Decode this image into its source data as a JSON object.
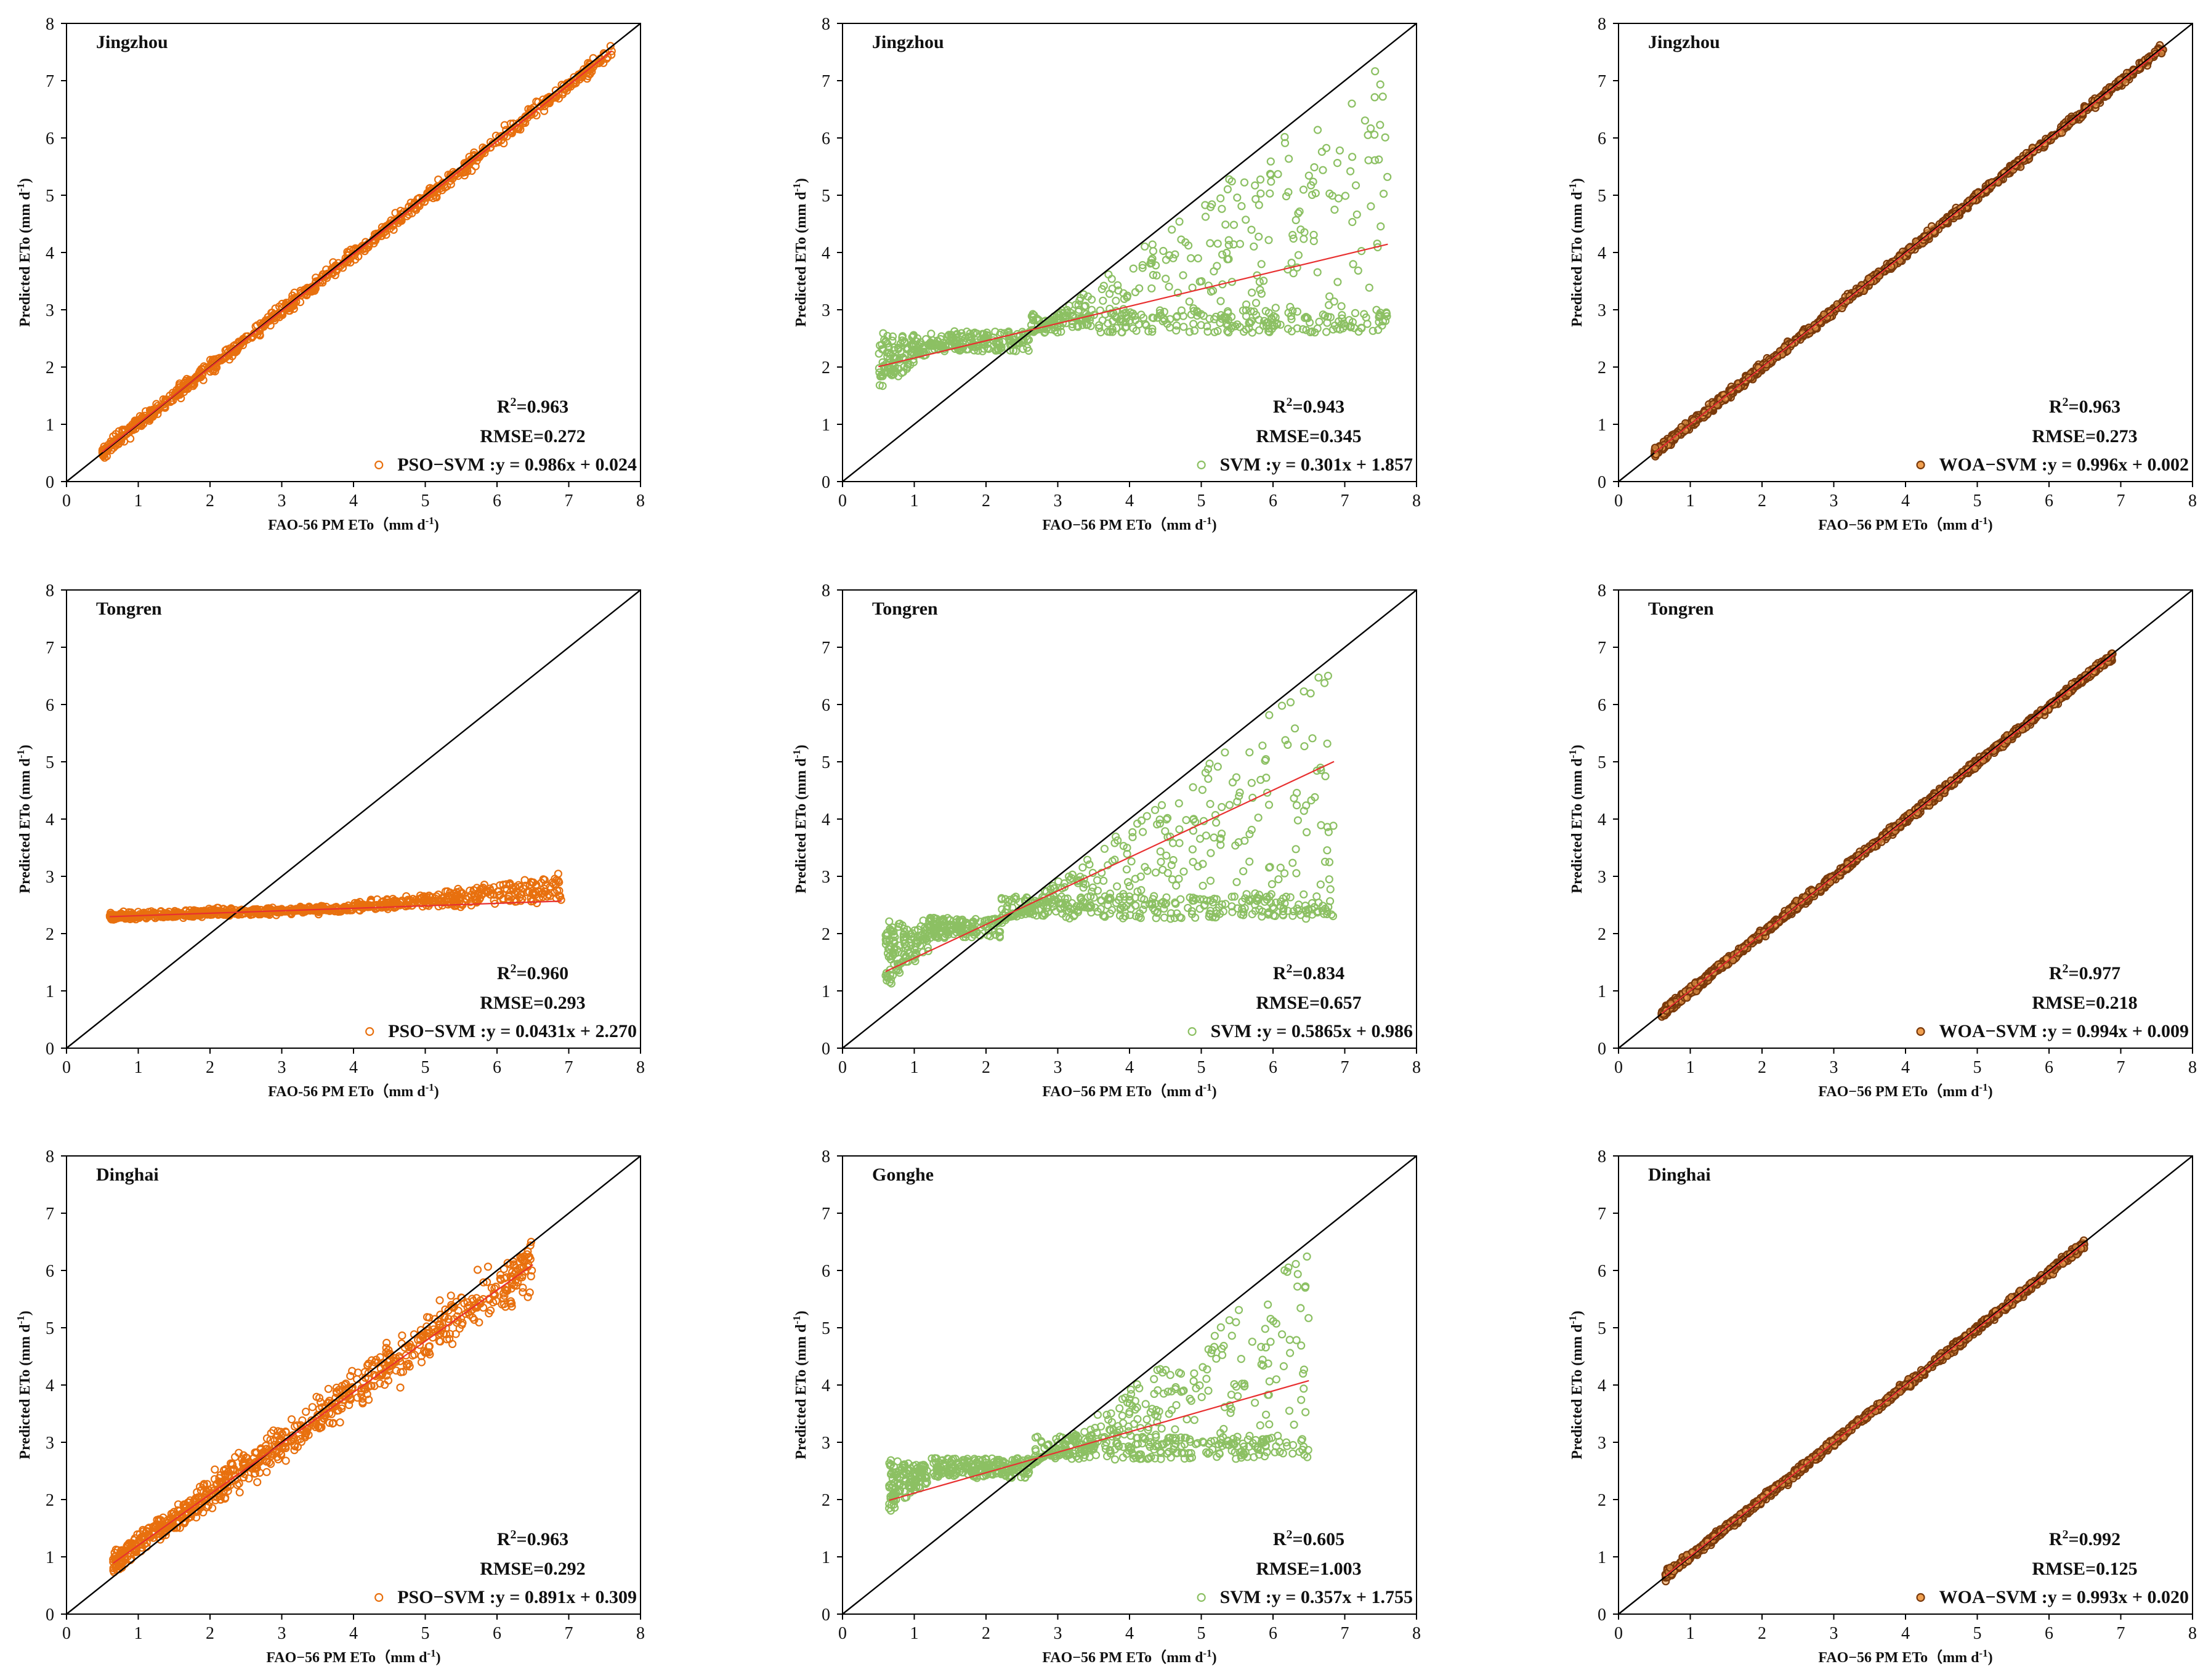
{
  "figure": {
    "xlabel": "FAO−56 PM ETo",
    "xlabel_alt": "FAO-56 PM ETo",
    "unit": "（mm d",
    "ylabel": "Predicted ETo",
    "ylabel_unit": "(mm d",
    "unit_sup": "-1",
    "unit_close": ")",
    "colors": {
      "PSO-SVM": "#e8700e",
      "SVM": "#8cc063",
      "WOA-SVM": "#7a3a0c",
      "fit": "#e83030",
      "diag": "#000000"
    }
  },
  "chart_data": [
    {
      "type": "scatter",
      "model": "PSO-SVM",
      "station": "Jingzhou",
      "xlim": [
        0,
        8
      ],
      "ylim": [
        0,
        8
      ],
      "xticks": [
        "0",
        "1",
        "2",
        "3",
        "4",
        "5",
        "6",
        "7",
        "8"
      ],
      "yticks": [
        "0",
        "1",
        "2",
        "3",
        "4",
        "5",
        "6",
        "7",
        "8"
      ],
      "xlabel_style": "alt",
      "r2_label": "R",
      "r2_sup": "2",
      "r2_value": "=0.963",
      "rmse": "RMSE=0.272",
      "legend": "PSO−SVM :y = 0.986x + 0.024",
      "slope": 0.986,
      "intercept": 0.024,
      "x_range": [
        0.5,
        7.6
      ],
      "points_hint": "close to 1:1 line with moderate scatter"
    },
    {
      "type": "scatter",
      "model": "SVM",
      "station": "Jingzhou",
      "xlim": [
        0,
        8
      ],
      "ylim": [
        0,
        8
      ],
      "xticks": [
        "0",
        "1",
        "2",
        "3",
        "4",
        "5",
        "6",
        "7",
        "8"
      ],
      "yticks": [
        "0",
        "1",
        "2",
        "3",
        "4",
        "5",
        "6",
        "7",
        "8"
      ],
      "xlabel_style": "normal",
      "r2_label": "R",
      "r2_sup": "2",
      "r2_value": "=0.943",
      "rmse": "RMSE=0.345",
      "legend": "SVM :y = 0.301x + 1.857",
      "slope": 0.301,
      "intercept": 1.857,
      "x_range": [
        0.5,
        7.6
      ],
      "points_hint": "flat band near 2.5 with spread at high x"
    },
    {
      "type": "scatter",
      "model": "WOA-SVM",
      "station": "Jingzhou",
      "xlim": [
        0,
        8
      ],
      "ylim": [
        0,
        8
      ],
      "xticks": [
        "0",
        "1",
        "2",
        "3",
        "4",
        "5",
        "6",
        "7",
        "8"
      ],
      "yticks": [
        "0",
        "1",
        "2",
        "3",
        "4",
        "5",
        "6",
        "7",
        "8"
      ],
      "xlabel_style": "normal",
      "r2_label": "R",
      "r2_sup": "2",
      "r2_value": "=0.963",
      "rmse": "RMSE=0.273",
      "legend": "WOA−SVM :y = 0.996x + 0.002",
      "slope": 0.996,
      "intercept": 0.002,
      "x_range": [
        0.5,
        7.6
      ],
      "points_hint": "tight along 1:1 line"
    },
    {
      "type": "scatter",
      "model": "PSO-SVM",
      "station": "Tongren",
      "xlim": [
        0,
        8
      ],
      "ylim": [
        0,
        8
      ],
      "xticks": [
        "0",
        "1",
        "2",
        "3",
        "4",
        "5",
        "6",
        "7",
        "8"
      ],
      "yticks": [
        "0",
        "1",
        "2",
        "3",
        "4",
        "5",
        "6",
        "7",
        "8"
      ],
      "xlabel_style": "alt",
      "r2_label": "R",
      "r2_sup": "2",
      "r2_value": "=0.960",
      "rmse": "RMSE=0.293",
      "legend": "PSO−SVM :y = 0.0431x + 2.270",
      "slope": 0.0431,
      "intercept": 2.27,
      "x_range": [
        0.6,
        6.9
      ],
      "points_hint": "flat band near 2.35"
    },
    {
      "type": "scatter",
      "model": "SVM",
      "station": "Tongren",
      "xlim": [
        0,
        8
      ],
      "ylim": [
        0,
        8
      ],
      "xticks": [
        "0",
        "1",
        "2",
        "3",
        "4",
        "5",
        "6",
        "7",
        "8"
      ],
      "yticks": [
        "0",
        "1",
        "2",
        "3",
        "4",
        "5",
        "6",
        "7",
        "8"
      ],
      "xlabel_style": "normal",
      "r2_label": "R",
      "r2_sup": "2",
      "r2_value": "=0.834",
      "rmse": "RMSE=0.657",
      "legend": "SVM :y = 0.5865x + 0.986",
      "slope": 0.5865,
      "intercept": 0.986,
      "x_range": [
        0.6,
        6.85
      ],
      "points_hint": "band near 2 at low x, spread above 4"
    },
    {
      "type": "scatter",
      "model": "WOA-SVM",
      "station": "Tongren",
      "xlim": [
        0,
        8
      ],
      "ylim": [
        0,
        8
      ],
      "xticks": [
        "0",
        "1",
        "2",
        "3",
        "4",
        "5",
        "6",
        "7",
        "8"
      ],
      "yticks": [
        "0",
        "1",
        "2",
        "3",
        "4",
        "5",
        "6",
        "7",
        "8"
      ],
      "xlabel_style": "normal",
      "r2_label": "R",
      "r2_sup": "2",
      "r2_value": "=0.977",
      "rmse": "RMSE=0.218",
      "legend": "WOA−SVM :y = 0.994x + 0.009",
      "slope": 0.994,
      "intercept": 0.009,
      "x_range": [
        0.6,
        6.9
      ],
      "points_hint": "tight along 1:1 line"
    },
    {
      "type": "scatter",
      "model": "PSO-SVM",
      "station": "Dinghai",
      "xlim": [
        0,
        8
      ],
      "ylim": [
        0,
        8
      ],
      "xticks": [
        "0",
        "1",
        "2",
        "3",
        "4",
        "5",
        "6",
        "7",
        "8"
      ],
      "yticks": [
        "0",
        "1",
        "2",
        "3",
        "4",
        "5",
        "6",
        "7",
        "8"
      ],
      "xlabel_style": "normal",
      "r2_label": "R",
      "r2_sup": "2",
      "r2_value": "=0.963",
      "rmse": "RMSE=0.292",
      "legend": "PSO−SVM :y = 0.891x + 0.309",
      "slope": 0.891,
      "intercept": 0.309,
      "x_range": [
        0.65,
        6.5
      ],
      "points_hint": "along 1:1 line with wider scatter"
    },
    {
      "type": "scatter",
      "model": "SVM",
      "station": "Gonghe",
      "xlim": [
        0,
        8
      ],
      "ylim": [
        0,
        8
      ],
      "xticks": [
        "0",
        "1",
        "2",
        "3",
        "4",
        "5",
        "6",
        "7",
        "8"
      ],
      "yticks": [
        "0",
        "1",
        "2",
        "3",
        "4",
        "5",
        "6",
        "7",
        "8"
      ],
      "xlabel_style": "normal",
      "r2_label": "R",
      "r2_sup": "2",
      "r2_value": "=0.605",
      "rmse": "RMSE=1.003",
      "legend": "SVM :y = 0.357x + 1.755",
      "slope": 0.357,
      "intercept": 1.755,
      "x_range": [
        0.65,
        6.5
      ],
      "points_hint": "flat band near 2.6 with spread at high x"
    },
    {
      "type": "scatter",
      "model": "WOA-SVM",
      "station": "Dinghai",
      "xlim": [
        0,
        8
      ],
      "ylim": [
        0,
        8
      ],
      "xticks": [
        "0",
        "1",
        "2",
        "3",
        "4",
        "5",
        "6",
        "7",
        "8"
      ],
      "yticks": [
        "0",
        "1",
        "2",
        "3",
        "4",
        "5",
        "6",
        "7",
        "8"
      ],
      "xlabel_style": "normal",
      "r2_label": "R",
      "r2_sup": "2",
      "r2_value": "=0.992",
      "rmse": "RMSE=0.125",
      "legend": "WOA−SVM :y = 0.993x + 0.020",
      "slope": 0.993,
      "intercept": 0.02,
      "x_range": [
        0.65,
        6.5
      ],
      "points_hint": "tight along 1:1 line"
    }
  ]
}
